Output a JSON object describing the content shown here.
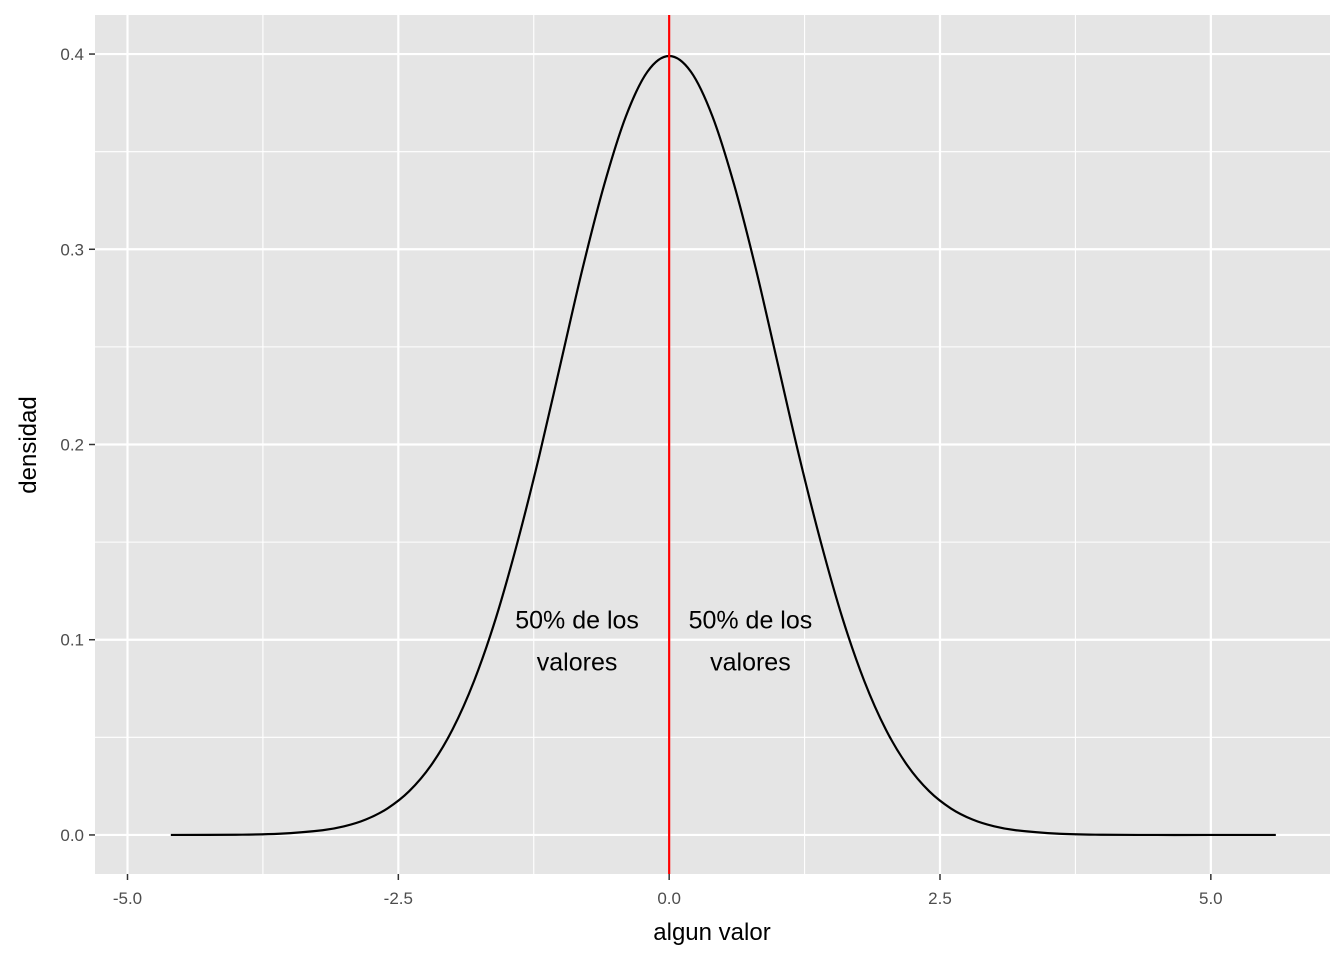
{
  "chart_data": {
    "type": "line",
    "title": "",
    "xlabel": "algun valor",
    "ylabel": "densidad",
    "xlim": [
      -5.3,
      6.1
    ],
    "ylim": [
      -0.02,
      0.42
    ],
    "x_ticks": [
      -5.0,
      -2.5,
      0.0,
      2.5,
      5.0
    ],
    "x_tick_labels": [
      "-5.0",
      "-2.5",
      "0.0",
      "2.5",
      "5.0"
    ],
    "y_ticks": [
      0.0,
      0.1,
      0.2,
      0.3,
      0.4
    ],
    "y_tick_labels": [
      "0.0",
      "0.1",
      "0.2",
      "0.3",
      "0.4"
    ],
    "grid": true,
    "legend": "none",
    "colors": {
      "panel": "#e5e5e5",
      "grid": "#ffffff",
      "curve": "#000000",
      "vline": "#ff0000",
      "tick_text": "#4d4d4d"
    },
    "series": [
      {
        "x": [
          -4.6,
          -4.0,
          -3.6,
          -3.2,
          -3.0,
          -2.8,
          -2.6,
          -2.4,
          -2.2,
          -2.0,
          -1.8,
          -1.6,
          -1.4,
          -1.2,
          -1.0,
          -0.8,
          -0.6,
          -0.4,
          -0.2,
          0.0,
          0.2,
          0.4,
          0.6,
          0.8,
          1.0,
          1.2,
          1.4,
          1.6,
          1.8,
          2.0,
          2.2,
          2.4,
          2.6,
          2.8,
          3.0,
          3.2,
          3.6,
          4.0,
          4.5,
          5.0,
          5.6
        ],
        "y": [
          0.0,
          0.0001,
          0.0006,
          0.0024,
          0.0044,
          0.0079,
          0.0136,
          0.0224,
          0.0355,
          0.054,
          0.079,
          0.111,
          0.15,
          0.194,
          0.242,
          0.29,
          0.333,
          0.368,
          0.391,
          0.399,
          0.391,
          0.368,
          0.333,
          0.29,
          0.242,
          0.194,
          0.15,
          0.111,
          0.079,
          0.054,
          0.0355,
          0.0224,
          0.0136,
          0.0079,
          0.0044,
          0.0024,
          0.0006,
          0.0001,
          0.0,
          0.0,
          0.0
        ]
      }
    ],
    "vline": {
      "x": 0.0
    },
    "annotations": [
      {
        "lines": [
          "50% de los",
          "valores"
        ],
        "x": -0.85,
        "y": 0.1
      },
      {
        "lines": [
          "50% de los",
          "valores"
        ],
        "x": 0.75,
        "y": 0.1
      }
    ]
  }
}
